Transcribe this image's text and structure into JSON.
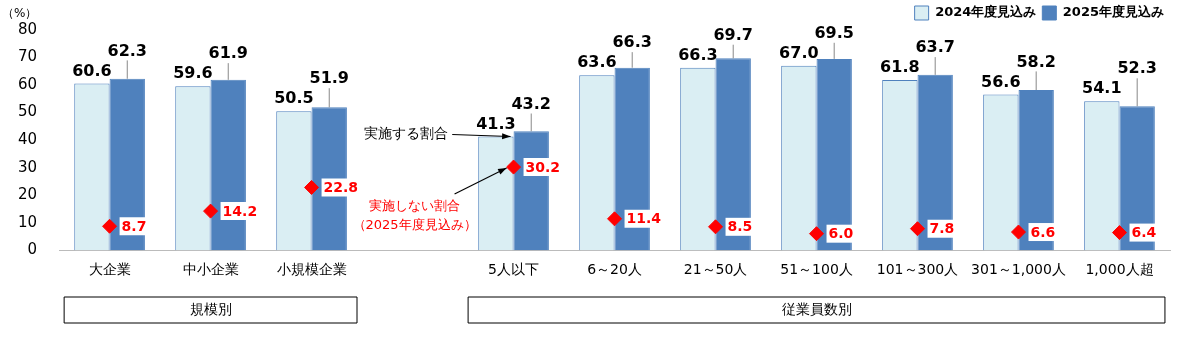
{
  "chart_data": {
    "type": "bar",
    "ylabel": "（%）",
    "categories": [
      "大企業",
      "中小企業",
      "小規模企業",
      null,
      "5人以下",
      "6～20人",
      "21～50人",
      "51～100人",
      "101～300人",
      "301～1,000人",
      "1,000人超"
    ],
    "series": [
      {
        "name": "2024年度見込み",
        "color": "#daeef3",
        "values": [
          60.6,
          59.6,
          50.5,
          null,
          41.3,
          63.6,
          66.3,
          67.0,
          61.8,
          56.6,
          54.1
        ],
        "value_labels": [
          "60.6",
          "59.6",
          "50.5",
          null,
          "41.3",
          "63.6",
          "66.3",
          "67.0",
          "61.8",
          "56.6",
          "54.1"
        ]
      },
      {
        "name": "2025年度見込み",
        "color": "#4f81bd",
        "values": [
          62.3,
          61.9,
          51.9,
          null,
          43.2,
          66.3,
          69.7,
          69.5,
          63.7,
          58.2,
          52.3
        ],
        "value_labels": [
          "62.3",
          "61.9",
          "51.9",
          null,
          "43.2",
          "66.3",
          "69.7",
          "69.5",
          "63.7",
          "58.2",
          "52.3"
        ]
      },
      {
        "type": "scatter",
        "color": "#ff0000",
        "marker": "diamond",
        "values": [
          8.7,
          14.2,
          22.8,
          null,
          30.2,
          11.4,
          8.5,
          6.0,
          7.8,
          6.6,
          6.4
        ],
        "value_labels": [
          "8.7",
          "14.2",
          "22.8",
          null,
          "30.2",
          "11.4",
          "8.5",
          "6.0",
          "7.8",
          "6.6",
          "6.4"
        ]
      }
    ],
    "ylim": [
      0,
      80
    ],
    "yticks": [
      0,
      10,
      20,
      30,
      40,
      50,
      60,
      70,
      80
    ],
    "grid": false,
    "legend": "top right",
    "annotations": [
      {
        "text": "実施する割合",
        "x": "5人以下",
        "y": 41.3
      },
      {
        "text": "実施しない割合（2025年度見込み）",
        "x": "5人以下",
        "y": 30.2
      },
      "規模別",
      "従業員数別"
    ]
  }
}
